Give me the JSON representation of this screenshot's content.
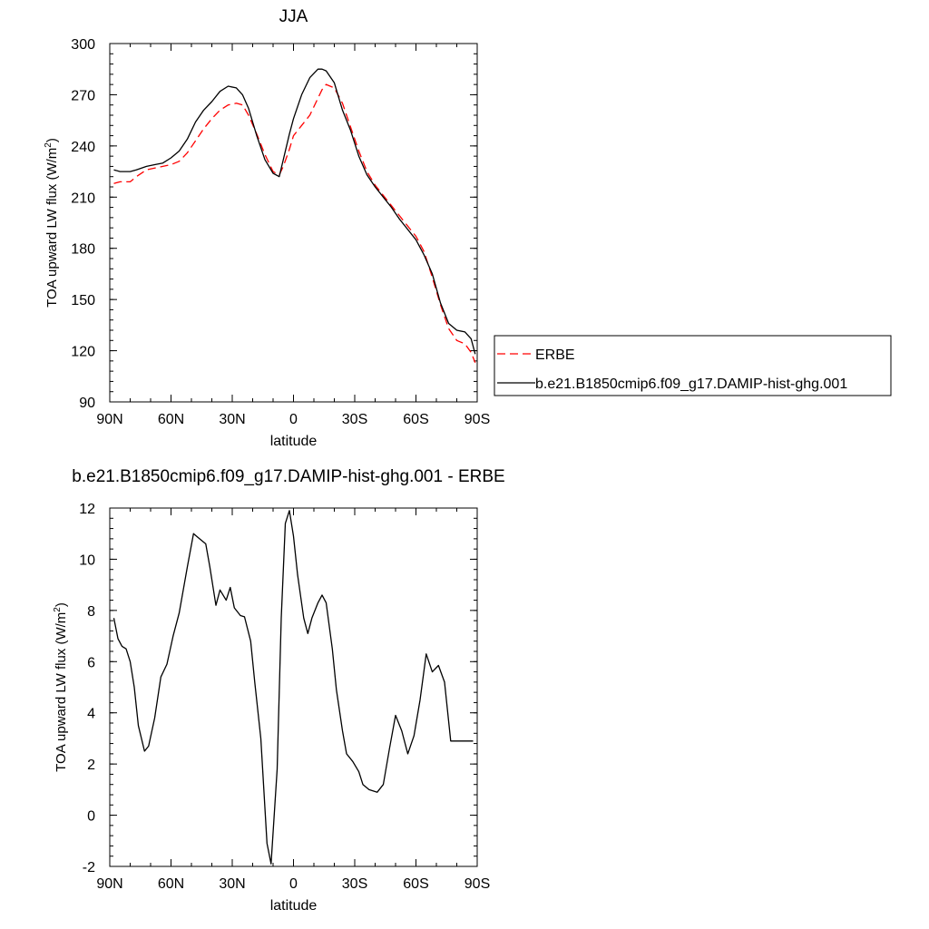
{
  "chart_data": [
    {
      "type": "line",
      "title": "JJA",
      "xlabel": "latitude",
      "ylabel": "TOA upward LW flux (W/m",
      "ylabel_sup": "2",
      "ylabel_close": ")",
      "xlim": [
        90,
        -90
      ],
      "ylim": [
        90,
        300
      ],
      "xticks": [
        90,
        60,
        30,
        0,
        -30,
        -60,
        -90
      ],
      "xtick_labels": [
        "90N",
        "60N",
        "30N",
        "0",
        "30S",
        "60S",
        "90S"
      ],
      "yticks": [
        90,
        120,
        150,
        180,
        210,
        240,
        270,
        300
      ],
      "ytick_labels": [
        "90",
        "120",
        "150",
        "180",
        "210",
        "240",
        "270",
        "300"
      ],
      "legend_position": "right",
      "series": [
        {
          "name": "ERBE",
          "color": "#ff0000",
          "dash": "dashed",
          "x": [
            88,
            85,
            80,
            77,
            72,
            68,
            64,
            60,
            56,
            52,
            48,
            44,
            40,
            36,
            32,
            28,
            25,
            22,
            18,
            14,
            10,
            7,
            5,
            2,
            0,
            -4,
            -8,
            -12,
            -14,
            -16,
            -20,
            -24,
            -28,
            -32,
            -36,
            -40,
            -44,
            -48,
            -52,
            -56,
            -60,
            -64,
            -68,
            -72,
            -76,
            -80,
            -84,
            -87,
            -89
          ],
          "y": [
            218,
            219,
            219,
            222,
            226,
            227,
            228,
            229,
            231,
            236,
            243,
            250,
            256,
            261,
            264,
            265,
            264,
            258,
            247,
            235,
            225,
            223,
            228,
            238,
            246,
            252,
            258,
            268,
            273,
            276,
            274,
            265,
            251,
            237,
            225,
            217,
            211,
            205,
            199,
            193,
            187,
            178,
            163,
            147,
            133,
            126,
            124,
            119,
            113
          ]
        },
        {
          "name": "b.e21.B1850cmip6.f09_g17.DAMIP-hist-ghg.001",
          "color": "#000000",
          "dash": "solid",
          "x": [
            88,
            85,
            80,
            77,
            72,
            68,
            64,
            60,
            56,
            52,
            48,
            44,
            40,
            36,
            32,
            28,
            25,
            22,
            18,
            14,
            10,
            7,
            5,
            2,
            0,
            -4,
            -8,
            -12,
            -14,
            -16,
            -20,
            -24,
            -28,
            -32,
            -36,
            -40,
            -44,
            -48,
            -52,
            -56,
            -60,
            -64,
            -68,
            -72,
            -76,
            -80,
            -84,
            -87,
            -89
          ],
          "y": [
            226,
            225,
            225,
            226,
            228,
            229,
            230,
            233,
            237,
            244,
            254,
            261,
            266,
            272,
            275,
            274,
            270,
            262,
            246,
            232,
            224,
            222,
            232,
            247,
            256,
            270,
            280,
            285,
            285,
            284,
            277,
            261,
            249,
            234,
            223,
            216,
            210,
            204,
            197,
            191,
            185,
            176,
            165,
            148,
            136,
            132,
            131,
            127,
            118
          ]
        }
      ]
    },
    {
      "type": "line",
      "title": "b.e21.B1850cmip6.f09_g17.DAMIP-hist-ghg.001 - ERBE",
      "xlabel": "latitude",
      "ylabel": "TOA upward LW flux (W/m",
      "ylabel_sup": "2",
      "ylabel_close": ")",
      "xlim": [
        90,
        -90
      ],
      "ylim": [
        -2,
        12
      ],
      "xticks": [
        90,
        60,
        30,
        0,
        -30,
        -60,
        -90
      ],
      "xtick_labels": [
        "90N",
        "60N",
        "30N",
        "0",
        "30S",
        "60S",
        "90S"
      ],
      "yticks": [
        -2,
        0,
        2,
        4,
        6,
        8,
        10,
        12
      ],
      "ytick_labels": [
        "-2",
        "0",
        "2",
        "4",
        "6",
        "8",
        "10",
        "12"
      ],
      "series": [
        {
          "color": "#000000",
          "dash": "solid",
          "x": [
            88,
            86,
            84,
            82,
            80,
            78,
            76,
            73,
            71,
            68,
            65,
            62,
            59,
            56,
            52,
            49,
            46,
            43,
            41,
            38,
            36,
            33,
            31,
            29,
            26,
            24,
            21,
            19,
            16,
            13,
            11,
            8,
            6,
            4,
            2,
            0,
            -2,
            -5,
            -7,
            -9,
            -12,
            -14,
            -16,
            -19,
            -21,
            -24,
            -26,
            -29,
            -32,
            -34,
            -37,
            -41,
            -44,
            -47,
            -50,
            -53,
            -56,
            -59,
            -62,
            -65,
            -68,
            -71,
            -74,
            -77,
            -80,
            -83,
            -86,
            -88
          ],
          "y": [
            7.7,
            6.9,
            6.6,
            6.5,
            6.0,
            5.0,
            3.5,
            2.5,
            2.7,
            3.8,
            5.4,
            5.9,
            7.0,
            7.9,
            9.7,
            11.0,
            10.8,
            10.6,
            9.7,
            8.2,
            8.8,
            8.4,
            8.9,
            8.1,
            7.8,
            7.75,
            6.8,
            5.2,
            3.0,
            -1.1,
            -1.9,
            1.8,
            7.7,
            11.4,
            11.9,
            10.9,
            9.4,
            7.7,
            7.1,
            7.7,
            8.3,
            8.6,
            8.3,
            6.5,
            4.9,
            3.3,
            2.4,
            2.1,
            1.7,
            1.2,
            1.0,
            0.9,
            1.2,
            2.6,
            3.9,
            3.3,
            2.4,
            3.1,
            4.5,
            6.3,
            5.6,
            5.85,
            5.2,
            2.9,
            2.9,
            2.9,
            2.9,
            2.9
          ]
        }
      ]
    }
  ]
}
